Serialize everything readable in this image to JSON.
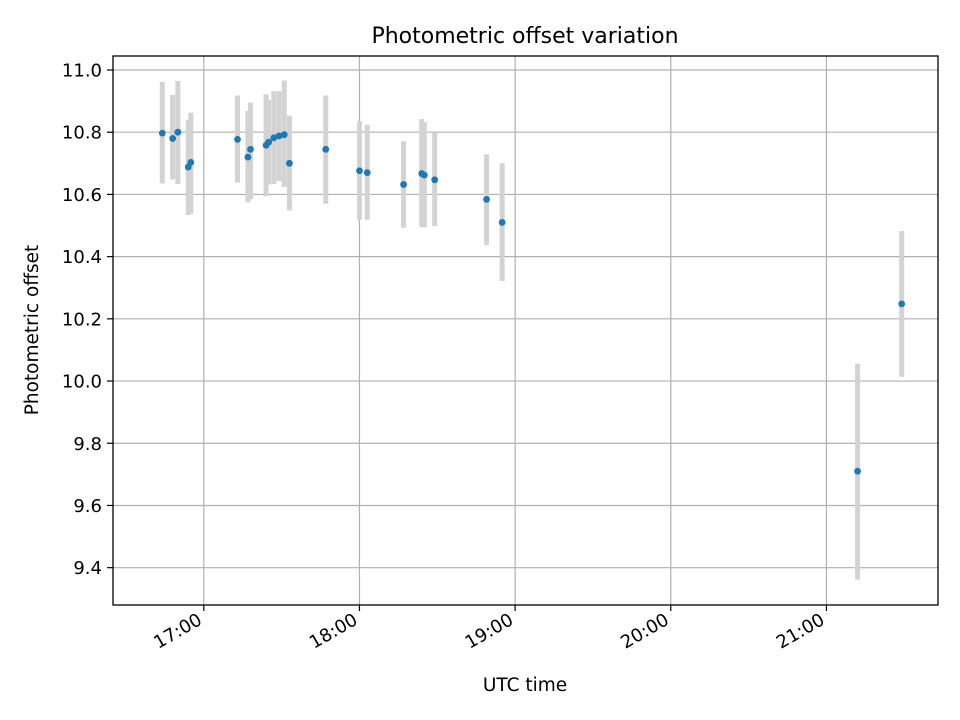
{
  "chart_data": {
    "type": "scatter",
    "title": "Photometric offset variation",
    "xlabel": "UTC time",
    "ylabel": "Photometric offset",
    "x_unit": "UTC time (HH:MM)",
    "xlim": [
      "16:25",
      "21:43"
    ],
    "ylim": [
      9.28,
      11.045
    ],
    "x_ticks": [
      "17:00",
      "18:00",
      "19:00",
      "20:00",
      "21:00"
    ],
    "y_ticks": [
      9.4,
      9.6,
      9.8,
      10.0,
      10.2,
      10.4,
      10.6,
      10.8,
      11.0
    ],
    "y_tick_labels": [
      "9.4",
      "9.6",
      "9.8",
      "10.0",
      "10.2",
      "10.4",
      "10.6",
      "10.8",
      "11.0"
    ],
    "grid": true,
    "legend": "none",
    "colors": {
      "point": "#1f77b4",
      "errorbar": "#d3d3d3",
      "grid": "#b0b0b0"
    },
    "points": [
      {
        "x": "16:44",
        "y": 10.797,
        "lo": 10.635,
        "hi": 10.962
      },
      {
        "x": "16:48",
        "y": 10.78,
        "lo": 10.648,
        "hi": 10.92
      },
      {
        "x": "16:50",
        "y": 10.8,
        "lo": 10.633,
        "hi": 10.965
      },
      {
        "x": "16:54",
        "y": 10.688,
        "lo": 10.534,
        "hi": 10.84
      },
      {
        "x": "16:55",
        "y": 10.703,
        "lo": 10.538,
        "hi": 10.863
      },
      {
        "x": "17:13",
        "y": 10.777,
        "lo": 10.638,
        "hi": 10.918
      },
      {
        "x": "17:17",
        "y": 10.72,
        "lo": 10.575,
        "hi": 10.868
      },
      {
        "x": "17:18",
        "y": 10.745,
        "lo": 10.585,
        "hi": 10.895
      },
      {
        "x": "17:24",
        "y": 10.758,
        "lo": 10.594,
        "hi": 10.922
      },
      {
        "x": "17:25",
        "y": 10.768,
        "lo": 10.632,
        "hi": 10.904
      },
      {
        "x": "17:27",
        "y": 10.782,
        "lo": 10.633,
        "hi": 10.932
      },
      {
        "x": "17:29",
        "y": 10.788,
        "lo": 10.643,
        "hi": 10.932
      },
      {
        "x": "17:31",
        "y": 10.792,
        "lo": 10.624,
        "hi": 10.966
      },
      {
        "x": "17:33",
        "y": 10.7,
        "lo": 10.548,
        "hi": 10.853
      },
      {
        "x": "17:47",
        "y": 10.745,
        "lo": 10.57,
        "hi": 10.918
      },
      {
        "x": "18:00",
        "y": 10.676,
        "lo": 10.519,
        "hi": 10.835
      },
      {
        "x": "18:03",
        "y": 10.67,
        "lo": 10.519,
        "hi": 10.824
      },
      {
        "x": "18:17",
        "y": 10.632,
        "lo": 10.493,
        "hi": 10.771
      },
      {
        "x": "18:24",
        "y": 10.667,
        "lo": 10.495,
        "hi": 10.842
      },
      {
        "x": "18:25",
        "y": 10.662,
        "lo": 10.494,
        "hi": 10.832
      },
      {
        "x": "18:29",
        "y": 10.647,
        "lo": 10.498,
        "hi": 10.797
      },
      {
        "x": "18:49",
        "y": 10.584,
        "lo": 10.437,
        "hi": 10.729
      },
      {
        "x": "18:55",
        "y": 10.51,
        "lo": 10.322,
        "hi": 10.7
      },
      {
        "x": "21:12",
        "y": 9.71,
        "lo": 9.362,
        "hi": 10.056
      },
      {
        "x": "21:29",
        "y": 10.248,
        "lo": 10.014,
        "hi": 10.482
      }
    ]
  }
}
